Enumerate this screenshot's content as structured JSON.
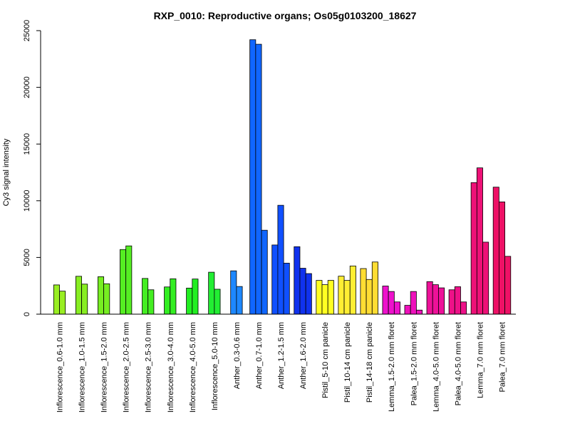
{
  "chart_data": {
    "type": "bar",
    "title": "RXP_0010: Reproductive organs; Os05g0103200_18627",
    "ylabel": "Cy3 signal intensity",
    "xlabel": "",
    "ylim": [
      0,
      25000
    ],
    "y_ticks": [
      "0",
      "5000",
      "10000",
      "15000",
      "20000",
      "25000"
    ],
    "grid": false,
    "groups": [
      {
        "label": "Inflorescence_0.6-1.0 mm",
        "color": "#99ee22",
        "values": [
          2580,
          2030
        ]
      },
      {
        "label": "Inflorescence_1.0-1.5 mm",
        "color": "#88ee22",
        "values": [
          3340,
          2650
        ]
      },
      {
        "label": "Inflorescence_1.5-2.0 mm",
        "color": "#77ee22",
        "values": [
          3300,
          2680
        ]
      },
      {
        "label": "Inflorescence_2.0-2.5 mm",
        "color": "#55ee22",
        "values": [
          5700,
          6020
        ]
      },
      {
        "label": "Inflorescence_2.5-3.0 mm",
        "color": "#44ee22",
        "values": [
          3150,
          2150
        ]
      },
      {
        "label": "Inflorescence_3.0-4.0 mm",
        "color": "#33ee22",
        "values": [
          2400,
          3120
        ]
      },
      {
        "label": "Inflorescence_4.0-5.0 mm",
        "color": "#22ee22",
        "values": [
          2300,
          3100
        ]
      },
      {
        "label": "Inflorescence_5.0-10 mm",
        "color": "#22ee33",
        "values": [
          3700,
          2200
        ]
      },
      {
        "label": "Anther_0.3-0.6 mm",
        "color": "#1e88ff",
        "values": [
          3820,
          2440
        ]
      },
      {
        "label": "Anther_0.7-1.0 mm",
        "color": "#1066ff",
        "values": [
          24200,
          23800,
          7400
        ]
      },
      {
        "label": "Anther_1.2-1.5 mm",
        "color": "#1050ff",
        "values": [
          6100,
          9600,
          4500
        ]
      },
      {
        "label": "Anther_1.6-2.0 mm",
        "color": "#1032ee",
        "values": [
          5950,
          4050,
          3580
        ]
      },
      {
        "label": "Pistil_5-10 cm panicle",
        "color": "#ffff22",
        "values": [
          2980,
          2600,
          2980
        ]
      },
      {
        "label": "Pistil_10-14 cm panicle",
        "color": "#ffee33",
        "values": [
          3350,
          2980,
          4250
        ]
      },
      {
        "label": "Pistil_14-18 cm panicle",
        "color": "#ffdd33",
        "values": [
          4020,
          3060,
          4600
        ]
      },
      {
        "label": "Lemma_1.5-2.0 mm floret",
        "color": "#ee11cc",
        "values": [
          2480,
          2000,
          1080
        ]
      },
      {
        "label": "Palea_1.5-2.0 mm floret",
        "color": "#ee11bb",
        "values": [
          780,
          2000,
          360
        ]
      },
      {
        "label": "Lemma_4.0-5.0 mm floret",
        "color": "#ee1199",
        "values": [
          2870,
          2600,
          2320
        ]
      },
      {
        "label": "Palea_4.0-5.0 mm floret",
        "color": "#ee1188",
        "values": [
          2150,
          2420,
          1080
        ]
      },
      {
        "label": "Lemma_7.0 mm floret",
        "color": "#ee1177",
        "values": [
          11600,
          12900,
          6350
        ]
      },
      {
        "label": "Palea_7.0 mm floret",
        "color": "#ee1166",
        "values": [
          11200,
          9900,
          5100
        ]
      }
    ]
  }
}
